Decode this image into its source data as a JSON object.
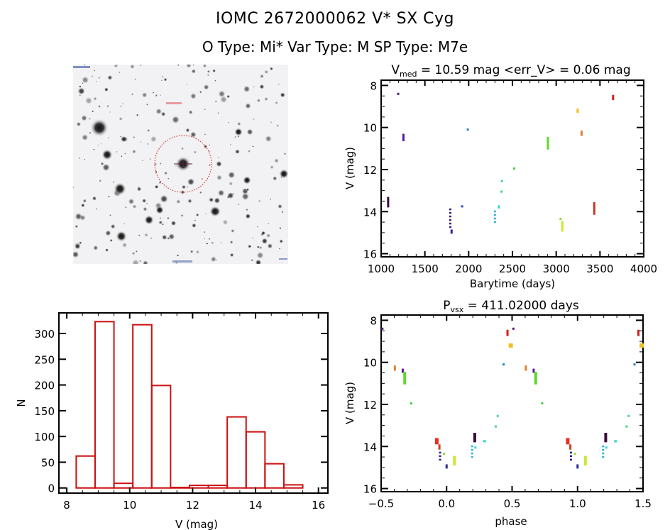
{
  "header": {
    "title_line1": "IOMC 2672000062    V* SX Cyg",
    "title_line2": "O Type: Mi*  Var Type: M  SP Type: M7e"
  },
  "finder_image": {
    "description": "grayscale star field finder chart",
    "target_marker": "red dashed circle with crosshair",
    "marker_color": "#d01010"
  },
  "chart_data": [
    {
      "id": "light_curve",
      "type": "scatter",
      "title": "V_med = 10.59 mag <err_V> = 0.06 mag",
      "title_parts": {
        "main": "V",
        "sub": "med",
        "rest": " = 10.59 mag <err_V> = 0.06 mag"
      },
      "xlabel": "Barytime (days)",
      "ylabel": "V (mag)",
      "xlim": [
        1000,
        4000
      ],
      "ylim": [
        16,
        8
      ],
      "y_inverted": true,
      "xticks": [
        1000,
        1500,
        2000,
        2500,
        3000,
        3500,
        4000
      ],
      "yticks": [
        8,
        10,
        12,
        14,
        16
      ],
      "segments": [
        {
          "x": 1080,
          "y1": 13.3,
          "y2": 13.8,
          "color": "#3a0a3a"
        },
        {
          "x": 1195,
          "y1": 8.35,
          "y2": 8.4,
          "color": "#4b1a80"
        },
        {
          "x": 1255,
          "y1": 10.3,
          "y2": 10.65,
          "color": "#5a18a0"
        },
        {
          "x": 1790,
          "y1": 13.85,
          "y2": 14.75,
          "color": "#2a1a90",
          "dotted": true
        },
        {
          "x": 1805,
          "y1": 14.85,
          "y2": 15.05,
          "color": "#2a2aa0"
        },
        {
          "x": 1925,
          "y1": 13.7,
          "y2": 13.75,
          "color": "#2050c0"
        },
        {
          "x": 1990,
          "y1": 10.05,
          "y2": 10.15,
          "color": "#2080c0"
        },
        {
          "x": 2300,
          "y1": 13.95,
          "y2": 14.5,
          "color": "#30b0d0",
          "dotted": true
        },
        {
          "x": 2345,
          "y1": 13.7,
          "y2": 13.85,
          "color": "#30d8c8"
        },
        {
          "x": 2380,
          "y1": 12.5,
          "y2": 12.5,
          "color": "#40d890"
        },
        {
          "x": 2375,
          "y1": 13.0,
          "y2": 13.0,
          "color": "#40d880"
        },
        {
          "x": 2520,
          "y1": 11.9,
          "y2": 11.95,
          "color": "#40d040"
        },
        {
          "x": 2905,
          "y1": 10.45,
          "y2": 11.05,
          "color": "#60d830"
        },
        {
          "x": 3050,
          "y1": 14.3,
          "y2": 14.35,
          "color": "#90d830"
        },
        {
          "x": 3070,
          "y1": 14.45,
          "y2": 14.95,
          "color": "#c8e830"
        },
        {
          "x": 3245,
          "y1": 9.1,
          "y2": 9.3,
          "color": "#f0c020"
        },
        {
          "x": 3290,
          "y1": 10.15,
          "y2": 10.4,
          "color": "#e08030"
        },
        {
          "x": 3435,
          "y1": 13.55,
          "y2": 14.15,
          "color": "#d03020"
        },
        {
          "x": 3650,
          "y1": 8.45,
          "y2": 8.7,
          "color": "#d02020"
        }
      ]
    },
    {
      "id": "histogram",
      "type": "bar",
      "title": "",
      "xlabel": "V (mag)",
      "ylabel": "N",
      "xlim": [
        7.75,
        16.3
      ],
      "ylim": [
        -10,
        340
      ],
      "xticks": [
        8,
        10,
        12,
        14,
        16
      ],
      "yticks": [
        0,
        50,
        100,
        150,
        200,
        250,
        300
      ],
      "bin_edges": [
        8.3,
        8.9,
        9.5,
        10.1,
        10.7,
        11.3,
        11.9,
        12.5,
        13.1,
        13.7,
        14.3,
        14.9,
        15.5
      ],
      "values": [
        62,
        323,
        9,
        317,
        199,
        1,
        5,
        5,
        138,
        109,
        47,
        6
      ],
      "bar_color": "#cc1010"
    },
    {
      "id": "phase_curve",
      "type": "scatter",
      "title": "P_vsx = 411.02000 days",
      "title_parts": {
        "main": "P",
        "sub": "vsx",
        "rest": " = 411.02000 days"
      },
      "period_days": 411.02,
      "xlabel": "phase",
      "ylabel": "V (mag)",
      "xlim": [
        -0.5,
        1.5
      ],
      "ylim": [
        16,
        8
      ],
      "y_inverted": true,
      "xticks": [
        -0.5,
        0.0,
        0.5,
        1.0,
        1.5
      ],
      "xtick_labels": [
        "−0.5",
        "0.0",
        "0.5",
        "1.0",
        "1.5"
      ],
      "yticks": [
        8,
        10,
        12,
        14,
        16
      ],
      "segments": [
        {
          "x": -0.075,
          "y1": 13.6,
          "y2": 13.9,
          "color": "#e83020",
          "w": 3
        },
        {
          "x": -0.055,
          "y1": 13.9,
          "y2": 14.15,
          "color": "#d04020"
        },
        {
          "x": -0.05,
          "y1": 14.25,
          "y2": 14.75,
          "color": "#2a1a90",
          "dotted": true
        },
        {
          "x": -0.02,
          "y1": 14.3,
          "y2": 14.35,
          "color": "#90d830"
        },
        {
          "x": 0.0,
          "y1": 14.85,
          "y2": 15.05,
          "color": "#2a2aa0"
        },
        {
          "x": 0.06,
          "y1": 14.45,
          "y2": 14.9,
          "color": "#c8e830",
          "w": 2
        },
        {
          "x": 0.195,
          "y1": 13.95,
          "y2": 14.5,
          "color": "#30b0d0",
          "dotted": true
        },
        {
          "x": 0.215,
          "y1": 13.35,
          "y2": 13.8,
          "color": "#3a0a3a",
          "w": 2
        },
        {
          "x": 0.22,
          "y1": 14.0,
          "y2": 14.05,
          "color": "#30d8d0"
        },
        {
          "x": 0.29,
          "y1": 13.7,
          "y2": 13.8,
          "color": "#30d8c8",
          "w": 2
        },
        {
          "x": 0.375,
          "y1": 13.0,
          "y2": 13.0,
          "color": "#40d880"
        },
        {
          "x": 0.39,
          "y1": 12.5,
          "y2": 12.5,
          "color": "#40d890"
        },
        {
          "x": 0.435,
          "y1": 10.05,
          "y2": 10.15,
          "color": "#2080c0"
        },
        {
          "x": 0.465,
          "y1": 8.45,
          "y2": 8.75,
          "color": "#d02020"
        },
        {
          "x": 0.49,
          "y1": 9.1,
          "y2": 9.3,
          "color": "#f0c020",
          "w": 4
        },
        {
          "x": 0.51,
          "y1": 8.35,
          "y2": 8.4,
          "color": "#4b1a80"
        },
        {
          "x": 0.605,
          "y1": 10.15,
          "y2": 10.4,
          "color": "#e08030"
        },
        {
          "x": 0.665,
          "y1": 10.3,
          "y2": 10.5,
          "color": "#5a18a0"
        },
        {
          "x": 0.68,
          "y1": 10.45,
          "y2": 11.05,
          "color": "#60d830",
          "w": 2
        },
        {
          "x": 0.73,
          "y1": 11.9,
          "y2": 11.95,
          "color": "#40d040"
        }
      ]
    }
  ]
}
